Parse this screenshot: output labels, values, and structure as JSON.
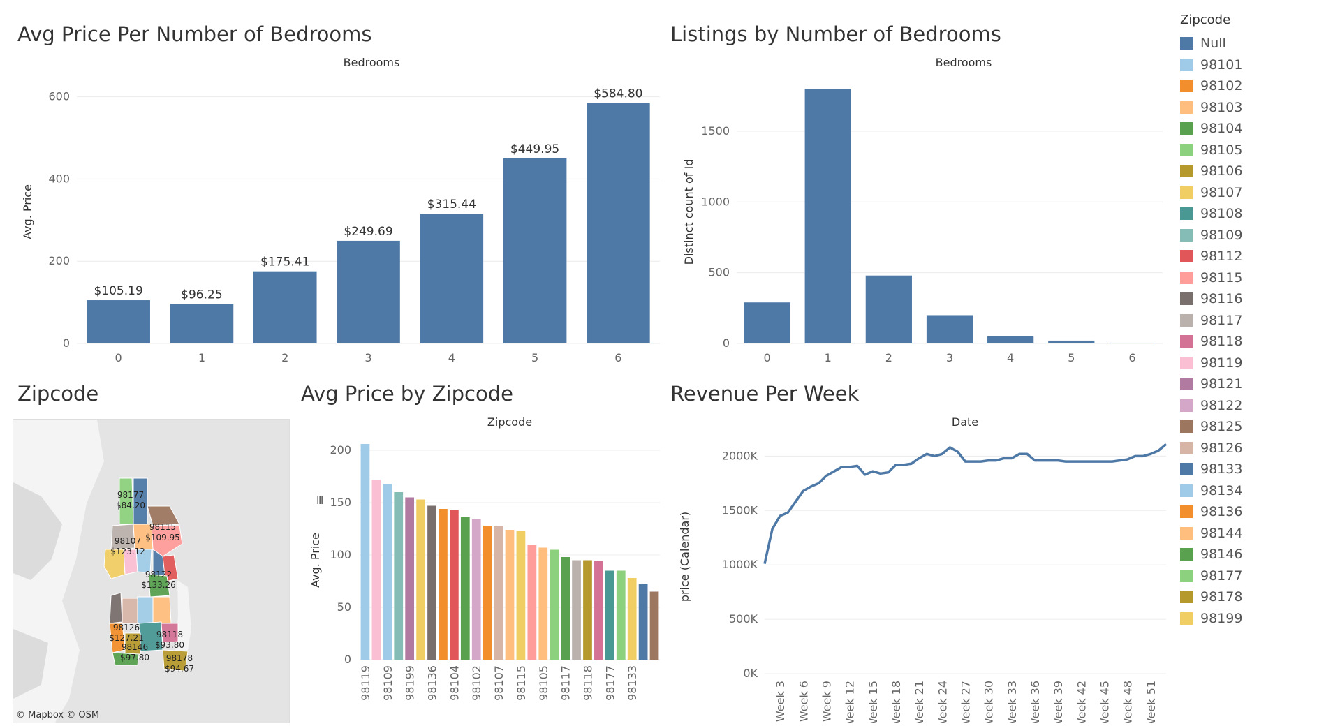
{
  "titles": {
    "avg_price_bedrooms": "Avg Price Per Number of Bedrooms",
    "listings_bedrooms": "Listings by Number of Bedrooms",
    "zipcode_map": "Zipcode",
    "avg_price_zip": "Avg Price by Zipcode",
    "revenue_week": "Revenue Per Week"
  },
  "map": {
    "credit": "© Mapbox  © OSM",
    "labels": [
      {
        "zip": "98177",
        "price": "$84.20"
      },
      {
        "zip": "98115",
        "price": "$109.95"
      },
      {
        "zip": "98107",
        "price": "$123.12"
      },
      {
        "zip": "98122",
        "price": "$133.26"
      },
      {
        "zip": "98126",
        "price": "$127.21"
      },
      {
        "zip": "98118",
        "price": "$93.80"
      },
      {
        "zip": "98146",
        "price": "$97.80"
      },
      {
        "zip": "98178",
        "price": "$94.67"
      }
    ]
  },
  "legend": {
    "title": "Zipcode",
    "items": [
      {
        "label": "Null",
        "color": "#4e79a7"
      },
      {
        "label": "98101",
        "color": "#a0cbe8"
      },
      {
        "label": "98102",
        "color": "#f28e2b"
      },
      {
        "label": "98103",
        "color": "#ffbe7d"
      },
      {
        "label": "98104",
        "color": "#59a14f"
      },
      {
        "label": "98105",
        "color": "#8cd17d"
      },
      {
        "label": "98106",
        "color": "#b6992d"
      },
      {
        "label": "98107",
        "color": "#f1ce63"
      },
      {
        "label": "98108",
        "color": "#499894"
      },
      {
        "label": "98109",
        "color": "#86bcb6"
      },
      {
        "label": "98112",
        "color": "#e15759"
      },
      {
        "label": "98115",
        "color": "#ff9d9a"
      },
      {
        "label": "98116",
        "color": "#79706e"
      },
      {
        "label": "98117",
        "color": "#bab0ac"
      },
      {
        "label": "98118",
        "color": "#d37295"
      },
      {
        "label": "98119",
        "color": "#fabfd2"
      },
      {
        "label": "98121",
        "color": "#b07aa1"
      },
      {
        "label": "98122",
        "color": "#d4a6c8"
      },
      {
        "label": "98125",
        "color": "#9d7660"
      },
      {
        "label": "98126",
        "color": "#d7b5a6"
      },
      {
        "label": "98133",
        "color": "#4e79a7"
      },
      {
        "label": "98134",
        "color": "#a0cbe8"
      },
      {
        "label": "98136",
        "color": "#f28e2b"
      },
      {
        "label": "98144",
        "color": "#ffbe7d"
      },
      {
        "label": "98146",
        "color": "#59a14f"
      },
      {
        "label": "98177",
        "color": "#8cd17d"
      },
      {
        "label": "98178",
        "color": "#b6992d"
      },
      {
        "label": "98199",
        "color": "#f1ce63"
      }
    ]
  },
  "chart_data": [
    {
      "id": "avg_price_bedrooms",
      "type": "bar",
      "header": "Bedrooms",
      "ylabel": "Avg. Price",
      "categories": [
        "0",
        "1",
        "2",
        "3",
        "4",
        "5",
        "6"
      ],
      "values": [
        105.19,
        96.25,
        175.41,
        249.69,
        315.44,
        449.95,
        584.8
      ],
      "data_labels": [
        "$105.19",
        "$96.25",
        "$175.41",
        "$249.69",
        "$315.44",
        "$449.95",
        "$584.80"
      ],
      "yticks": [
        0,
        200,
        400,
        600
      ],
      "ylim": [
        0,
        640
      ],
      "color": "#4e79a7",
      "grid": true
    },
    {
      "id": "listings_bedrooms",
      "type": "bar",
      "header": "Bedrooms",
      "ylabel": "Distinct count of Id",
      "categories": [
        "0",
        "1",
        "2",
        "3",
        "4",
        "5",
        "6"
      ],
      "values": [
        290,
        1800,
        480,
        200,
        50,
        20,
        5
      ],
      "yticks": [
        0,
        500,
        1000,
        1500
      ],
      "ylim": [
        0,
        1860
      ],
      "color": "#4e79a7",
      "grid": true
    },
    {
      "id": "avg_price_zip",
      "type": "bar",
      "header": "Zipcode",
      "ylabel": "Avg. Price",
      "categories": [
        "98119",
        "98109",
        "98199",
        "98136",
        "98104",
        "98102",
        "98107",
        "98115",
        "98105",
        "98117",
        "98118",
        "98177",
        "98133"
      ],
      "bars": [
        {
          "zip": "98119",
          "value": 206,
          "color": "#a0cbe8",
          "labeled": true
        },
        {
          "zip": "98119b",
          "value": 172,
          "color": "#fabfd2",
          "labeled": false
        },
        {
          "zip": "98109",
          "value": 168,
          "color": "#a0cbe8",
          "labeled": true
        },
        {
          "zip": "98109b",
          "value": 160,
          "color": "#86bcb6",
          "labeled": false
        },
        {
          "zip": "98199",
          "value": 155,
          "color": "#b07aa1",
          "labeled": true
        },
        {
          "zip": "98199b",
          "value": 153,
          "color": "#f1ce63",
          "labeled": false
        },
        {
          "zip": "98136",
          "value": 147,
          "color": "#79706e",
          "labeled": true
        },
        {
          "zip": "98136b",
          "value": 144,
          "color": "#f28e2b",
          "labeled": false
        },
        {
          "zip": "98104",
          "value": 143,
          "color": "#e15759",
          "labeled": true
        },
        {
          "zip": "98104b",
          "value": 136,
          "color": "#59a14f",
          "labeled": false
        },
        {
          "zip": "98102",
          "value": 134,
          "color": "#d4a6c8",
          "labeled": true
        },
        {
          "zip": "98102b",
          "value": 128,
          "color": "#f28e2b",
          "labeled": false
        },
        {
          "zip": "98107",
          "value": 128,
          "color": "#d7b5a6",
          "labeled": true
        },
        {
          "zip": "98107b",
          "value": 124,
          "color": "#ffbe7d",
          "labeled": false
        },
        {
          "zip": "98115",
          "value": 123,
          "color": "#f1ce63",
          "labeled": true
        },
        {
          "zip": "98115b",
          "value": 110,
          "color": "#ff9d9a",
          "labeled": false
        },
        {
          "zip": "98105",
          "value": 107,
          "color": "#ffbe7d",
          "labeled": true
        },
        {
          "zip": "98105b",
          "value": 105,
          "color": "#8cd17d",
          "labeled": false
        },
        {
          "zip": "98117",
          "value": 98,
          "color": "#59a14f",
          "labeled": true
        },
        {
          "zip": "98117b",
          "value": 95,
          "color": "#bab0ac",
          "labeled": false
        },
        {
          "zip": "98118",
          "value": 95,
          "color": "#b6992d",
          "labeled": true
        },
        {
          "zip": "98118b",
          "value": 94,
          "color": "#d37295",
          "labeled": false
        },
        {
          "zip": "98177",
          "value": 85,
          "color": "#499894",
          "labeled": true
        },
        {
          "zip": "98177b",
          "value": 85,
          "color": "#8cd17d",
          "labeled": false
        },
        {
          "zip": "98133",
          "value": 78,
          "color": "#f1ce63",
          "labeled": true
        },
        {
          "zip": "98133b",
          "value": 72,
          "color": "#4e79a7",
          "labeled": false
        },
        {
          "zip": "98133c",
          "value": 65,
          "color": "#9d7660",
          "labeled": false
        }
      ],
      "yticks": [
        0,
        50,
        100,
        150,
        200
      ],
      "ylim": [
        0,
        210
      ],
      "grid": true
    },
    {
      "id": "revenue_week",
      "type": "line",
      "header": "Date",
      "ylabel": "price (Calendar)",
      "x_ticks": [
        "Week 3",
        "Week 6",
        "Week 9",
        "Week 12",
        "Week 15",
        "Week 18",
        "Week 21",
        "Week 24",
        "Week 27",
        "Week 30",
        "Week 33",
        "Week 36",
        "Week 39",
        "Week 42",
        "Week 45",
        "Week 48",
        "Week 51"
      ],
      "x": [
        1,
        2,
        3,
        4,
        5,
        6,
        7,
        8,
        9,
        10,
        11,
        12,
        13,
        14,
        15,
        16,
        17,
        18,
        19,
        20,
        21,
        22,
        23,
        24,
        25,
        26,
        27,
        28,
        29,
        30,
        31,
        32,
        33,
        34,
        35,
        36,
        37,
        38,
        39,
        40,
        41,
        42,
        43,
        44,
        45,
        46,
        47,
        48,
        49,
        50,
        51,
        52,
        53
      ],
      "values": [
        1010,
        1330,
        1450,
        1480,
        1580,
        1680,
        1720,
        1750,
        1820,
        1860,
        1900,
        1900,
        1910,
        1830,
        1860,
        1840,
        1850,
        1920,
        1920,
        1930,
        1980,
        2020,
        2000,
        2020,
        2080,
        2040,
        1950,
        1950,
        1950,
        1960,
        1960,
        1980,
        1980,
        2020,
        2020,
        1960,
        1960,
        1960,
        1960,
        1950,
        1950,
        1950,
        1950,
        1950,
        1950,
        1950,
        1960,
        1970,
        2000,
        2000,
        2020,
        2050,
        2110
      ],
      "unit": "K",
      "yticks": [
        0,
        500,
        1000,
        1500,
        2000
      ],
      "ytick_labels": [
        "0K",
        "500K",
        "1000K",
        "1500K",
        "2000K"
      ],
      "ylim": [
        0,
        2150
      ],
      "color": "#4e79a7",
      "grid": true
    }
  ]
}
